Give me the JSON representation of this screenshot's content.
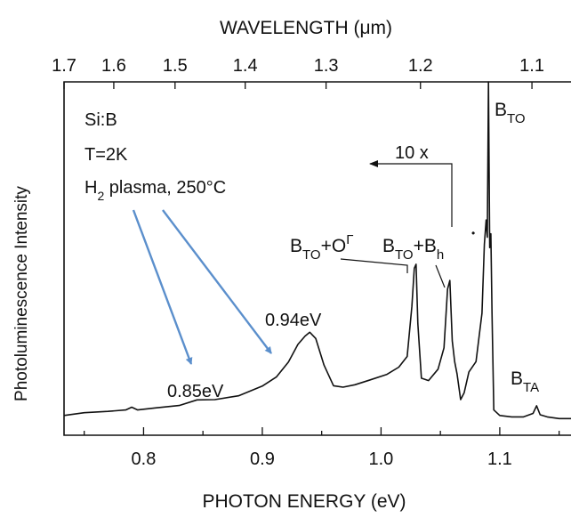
{
  "chart_data": {
    "type": "line",
    "title": "",
    "xlabel": "PHOTON ENERGY (eV)",
    "ylabel": "Photoluminescence Intensity",
    "xlim": [
      0.733,
      1.16
    ],
    "ylim": [
      0,
      100
    ],
    "grid": false,
    "x_ticks": [
      "0.8",
      "0.9",
      "1.0",
      "1.1"
    ],
    "x_tick_values": [
      0.8,
      0.9,
      1.0,
      1.1
    ],
    "secondary_axis": {
      "position": "top",
      "label": "WAVELENGTH (μm)",
      "tick_labels": [
        "1.7",
        "1.6",
        "1.5",
        "1.4",
        "1.3",
        "1.2",
        "1.1"
      ],
      "tick_energies": [
        0.7293,
        0.7749,
        0.8265,
        0.8856,
        0.9537,
        1.0332,
        1.1271
      ]
    },
    "series": [
      {
        "name": "",
        "x": [
          0.733,
          0.75,
          0.77,
          0.785,
          0.79,
          0.795,
          0.81,
          0.83,
          0.845,
          0.86,
          0.88,
          0.9,
          0.912,
          0.922,
          0.93,
          0.936,
          0.94,
          0.945,
          0.952,
          0.96,
          0.968,
          0.978,
          0.99,
          1.005,
          1.015,
          1.022,
          1.026,
          1.028,
          1.0295,
          1.031,
          1.034,
          1.04,
          1.048,
          1.053,
          1.056,
          1.058,
          1.06,
          1.062,
          1.064,
          1.067,
          1.07,
          1.074,
          1.08,
          1.085,
          1.087,
          1.0885,
          1.0895,
          1.0905,
          1.0915,
          1.0925,
          1.0935,
          1.095,
          1.1,
          1.11,
          1.12,
          1.128,
          1.131,
          1.134,
          1.14,
          1.15,
          1.16
        ],
        "y": [
          3.4,
          4.2,
          4.6,
          5.0,
          5.8,
          5.0,
          5.6,
          6.3,
          7.9,
          8.0,
          9.1,
          11.9,
          14.6,
          18.9,
          24.0,
          26.4,
          27.5,
          25.7,
          18.0,
          12.0,
          11.6,
          12.3,
          13.6,
          15.3,
          17.4,
          20.5,
          35.0,
          46.0,
          47.2,
          30.0,
          14.2,
          13.5,
          16.8,
          23.0,
          40.0,
          42.5,
          25.0,
          19.0,
          15.4,
          8.0,
          10.0,
          16.0,
          19.0,
          33.0,
          53.0,
          60.0,
          55.0,
          100.0,
          52.0,
          56.0,
          33.0,
          5.0,
          3.4,
          3.0,
          3.0,
          4.0,
          6.2,
          3.6,
          3.0,
          2.5,
          2.5
        ]
      }
    ],
    "annotations": {
      "sample": "Si:B",
      "temperature": "T=2K",
      "treatment_prefix": "H",
      "treatment_subscript": "2",
      "treatment_suffix": " plasma, 250°C",
      "scale_factor": "10 x",
      "dot": "•",
      "peak_094": "0.94eV",
      "peak_085": "0.85eV",
      "b_to_o_base": "B",
      "b_to_o_sub": "TO",
      "b_to_o_plus": "+O",
      "b_to_o_sup": "Γ",
      "b_to_bh_base": "B",
      "b_to_bh_sub": "TO",
      "b_to_bh_plus": "+B",
      "b_to_bh_sub2": "h",
      "b_to_base": "B",
      "b_to_sub": "TO",
      "b_ta_base": "B",
      "b_ta_sub": "TA"
    },
    "arrow_color": "#5b8fcc"
  }
}
